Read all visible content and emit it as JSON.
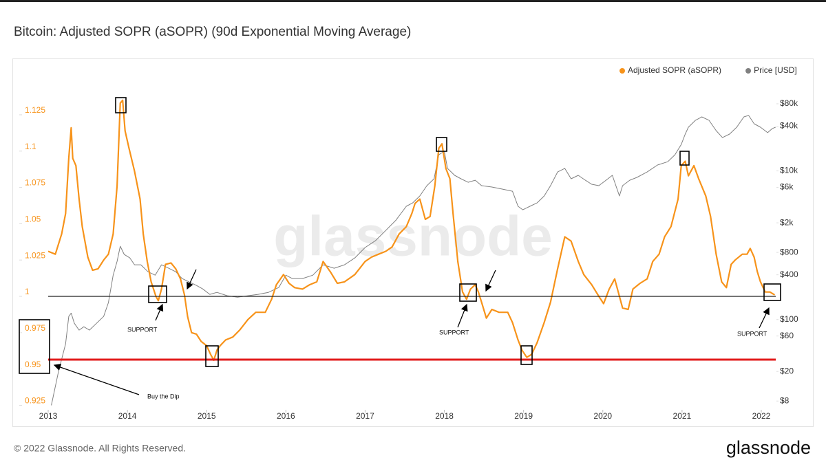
{
  "chart_data": {
    "type": "line",
    "title": "Bitcoin: Adjusted SOPR (aSOPR) (90d Exponential Moving Average)",
    "footer": "© 2022 Glassnode. All Rights Reserved.",
    "brand": "glassnode",
    "watermark": "glassnode",
    "annotations": [
      "SUPPORT",
      "SUPPORT",
      "SUPPORT",
      "Buy the Dip"
    ],
    "xlim": [
      2013,
      2022.2
    ],
    "xticks": [
      2013,
      2014,
      2015,
      2016,
      2017,
      2018,
      2019,
      2020,
      2021,
      2022
    ],
    "ylim": [
      0.92,
      1.16
    ],
    "yticks": [
      0.925,
      0.95,
      0.975,
      1,
      1.025,
      1.05,
      1.075,
      1.1,
      1.125
    ],
    "y2lim": [
      5.6,
      275000
    ],
    "y2scale": "log",
    "y2ticks": [
      {
        "value": 8,
        "label": "$8"
      },
      {
        "value": 20,
        "label": "$20"
      },
      {
        "value": 60,
        "label": "$60"
      },
      {
        "value": 100,
        "label": "$100"
      },
      {
        "value": 400,
        "label": "$400"
      },
      {
        "value": 800,
        "label": "$800"
      },
      {
        "value": 2000,
        "label": "$2k"
      },
      {
        "value": 6000,
        "label": "$6k"
      },
      {
        "value": 10000,
        "label": "$10k"
      },
      {
        "value": 40000,
        "label": "$40k"
      },
      {
        "value": 80000,
        "label": "$80k"
      }
    ],
    "grid": false,
    "legend": "top-right",
    "series": [
      {
        "name": "Adjusted SOPR (aSOPR)",
        "color": "#f7931a",
        "axis": "y",
        "x": [
          2013.0,
          2013.09,
          2013.17,
          2013.22,
          2013.26,
          2013.29,
          2013.31,
          2013.35,
          2013.39,
          2013.43,
          2013.5,
          2013.56,
          2013.63,
          2013.7,
          2013.76,
          2013.82,
          2013.87,
          2013.91,
          2013.94,
          2013.97,
          2014.02,
          2014.09,
          2014.16,
          2014.2,
          2014.25,
          2014.3,
          2014.36,
          2014.39,
          2014.43,
          2014.48,
          2014.55,
          2014.61,
          2014.67,
          2014.72,
          2014.76,
          2014.81,
          2014.87,
          2014.93,
          2015.0,
          2015.05,
          2015.09,
          2015.13,
          2015.17,
          2015.24,
          2015.33,
          2015.42,
          2015.52,
          2015.62,
          2015.74,
          2015.82,
          2015.88,
          2015.97,
          2016.04,
          2016.11,
          2016.21,
          2016.3,
          2016.39,
          2016.47,
          2016.56,
          2016.65,
          2016.74,
          2016.87,
          2017.0,
          2017.08,
          2017.17,
          2017.26,
          2017.34,
          2017.43,
          2017.52,
          2017.59,
          2017.63,
          2017.69,
          2017.76,
          2017.82,
          2017.88,
          2017.93,
          2017.97,
          2018.02,
          2018.07,
          2018.11,
          2018.17,
          2018.23,
          2018.28,
          2018.33,
          2018.39,
          2018.43,
          2018.47,
          2018.53,
          2018.6,
          2018.69,
          2018.8,
          2018.86,
          2018.93,
          2018.98,
          2019.04,
          2019.1,
          2019.17,
          2019.26,
          2019.34,
          2019.43,
          2019.52,
          2019.6,
          2019.69,
          2019.76,
          2019.86,
          2019.95,
          2020.01,
          2020.08,
          2020.15,
          2020.21,
          2020.25,
          2020.32,
          2020.38,
          2020.47,
          2020.56,
          2020.63,
          2020.71,
          2020.78,
          2020.86,
          2020.95,
          2020.99,
          2021.04,
          2021.08,
          2021.15,
          2021.21,
          2021.3,
          2021.36,
          2021.43,
          2021.5,
          2021.56,
          2021.62,
          2021.67,
          2021.76,
          2021.82,
          2021.86,
          2021.91,
          2021.95,
          2021.99,
          2022.05,
          2022.11,
          2022.17
        ],
        "values": [
          1.031,
          1.029,
          1.043,
          1.057,
          1.095,
          1.116,
          1.095,
          1.09,
          1.067,
          1.048,
          1.027,
          1.018,
          1.019,
          1.025,
          1.029,
          1.043,
          1.076,
          1.133,
          1.135,
          1.114,
          1.102,
          1.086,
          1.067,
          1.043,
          1.024,
          1.01,
          1.0,
          0.997,
          1.005,
          1.022,
          1.023,
          1.019,
          1.012,
          1.001,
          0.986,
          0.975,
          0.974,
          0.969,
          0.966,
          0.96,
          0.956,
          0.963,
          0.966,
          0.97,
          0.972,
          0.977,
          0.984,
          0.989,
          0.989,
          0.998,
          1.008,
          1.015,
          1.009,
          1.006,
          1.005,
          1.008,
          1.01,
          1.024,
          1.017,
          1.009,
          1.01,
          1.015,
          1.024,
          1.027,
          1.029,
          1.031,
          1.034,
          1.043,
          1.048,
          1.057,
          1.064,
          1.067,
          1.053,
          1.055,
          1.076,
          1.102,
          1.105,
          1.088,
          1.081,
          1.057,
          1.024,
          1.003,
          0.998,
          1.005,
          1.008,
          1.003,
          0.996,
          0.985,
          0.991,
          0.989,
          0.989,
          0.982,
          0.97,
          0.963,
          0.958,
          0.96,
          0.968,
          0.982,
          0.996,
          1.019,
          1.041,
          1.038,
          1.024,
          1.015,
          1.008,
          1.0,
          0.995,
          1.005,
          1.012,
          1.0,
          0.992,
          0.991,
          1.005,
          1.009,
          1.012,
          1.024,
          1.029,
          1.041,
          1.048,
          1.067,
          1.09,
          1.093,
          1.083,
          1.09,
          1.081,
          1.069,
          1.055,
          1.029,
          1.01,
          1.006,
          1.022,
          1.025,
          1.029,
          1.029,
          1.033,
          1.027,
          1.017,
          1.01,
          1.003,
          1.003,
          1.001
        ]
      },
      {
        "name": "Price [USD]",
        "color": "#808080",
        "axis": "y2",
        "x": [
          2013.04,
          2013.13,
          2013.22,
          2013.26,
          2013.29,
          2013.33,
          2013.39,
          2013.45,
          2013.52,
          2013.61,
          2013.7,
          2013.76,
          2013.82,
          2013.87,
          2013.91,
          2013.96,
          2014.03,
          2014.09,
          2014.17,
          2014.26,
          2014.35,
          2014.43,
          2014.52,
          2014.61,
          2014.69,
          2014.78,
          2014.87,
          2014.95,
          2015.04,
          2015.13,
          2015.26,
          2015.39,
          2015.52,
          2015.65,
          2015.78,
          2015.91,
          2016.0,
          2016.08,
          2016.21,
          2016.34,
          2016.47,
          2016.61,
          2016.74,
          2016.87,
          2017.0,
          2017.13,
          2017.26,
          2017.39,
          2017.52,
          2017.6,
          2017.69,
          2017.78,
          2017.87,
          2017.93,
          2018.0,
          2018.04,
          2018.13,
          2018.21,
          2018.3,
          2018.39,
          2018.47,
          2018.6,
          2018.73,
          2018.86,
          2018.93,
          2018.99,
          2019.08,
          2019.17,
          2019.26,
          2019.34,
          2019.43,
          2019.52,
          2019.6,
          2019.69,
          2019.78,
          2019.86,
          2019.95,
          2020.04,
          2020.12,
          2020.21,
          2020.25,
          2020.34,
          2020.43,
          2020.56,
          2020.69,
          2020.82,
          2020.91,
          2020.99,
          2021.04,
          2021.08,
          2021.17,
          2021.25,
          2021.34,
          2021.43,
          2021.51,
          2021.6,
          2021.69,
          2021.78,
          2021.84,
          2021.91,
          2021.99,
          2022.08,
          2022.14,
          2022.18
        ],
        "values": [
          7,
          20,
          47,
          110,
          122,
          89,
          72,
          80,
          72,
          89,
          110,
          169,
          395,
          606,
          969,
          750,
          675,
          545,
          545,
          440,
          395,
          545,
          490,
          440,
          356,
          320,
          288,
          258,
          218,
          232,
          209,
          200,
          209,
          218,
          232,
          270,
          395,
          356,
          356,
          395,
          545,
          490,
          545,
          675,
          930,
          1150,
          1580,
          2180,
          3340,
          3710,
          4600,
          6330,
          7830,
          16500,
          18400,
          10800,
          8710,
          7830,
          7030,
          7500,
          6330,
          6070,
          5690,
          5330,
          3340,
          3000,
          3340,
          3710,
          4600,
          6330,
          9680,
          10800,
          7830,
          8710,
          7500,
          6610,
          6330,
          7500,
          8710,
          4600,
          6330,
          7500,
          8170,
          9680,
          12000,
          13300,
          16500,
          22700,
          31300,
          38700,
          48000,
          53300,
          48000,
          34800,
          28100,
          31300,
          38700,
          53300,
          55700,
          43100,
          38700,
          32700,
          37200,
          38700
        ]
      }
    ]
  }
}
